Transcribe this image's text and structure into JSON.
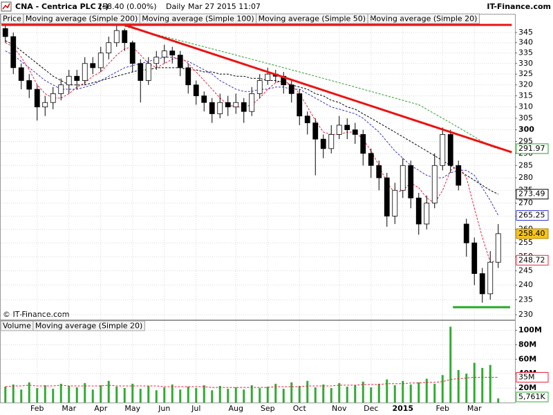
{
  "chart_data": {
    "type": "candlestick",
    "header": {
      "symbol": "CNA - Centrica PLC (-)",
      "quote": "258.40 (0.00%)",
      "period": "Daily",
      "datetime": "Mar 27 2015 11:07",
      "source": "IT-Finance.com"
    },
    "copyright": "© IT-Finance.com",
    "price_name": "Price",
    "log": true,
    "grid": true,
    "categories": [
      null,
      null,
      null,
      null,
      "Feb",
      null,
      null,
      null,
      "Mar",
      null,
      null,
      null,
      "Apr",
      null,
      null,
      null,
      "May",
      null,
      null,
      null,
      "Jun",
      null,
      null,
      null,
      "Jul",
      null,
      null,
      null,
      null,
      "Aug",
      null,
      null,
      null,
      "Sep",
      null,
      null,
      null,
      "Oct",
      null,
      null,
      null,
      null,
      "Nov",
      null,
      null,
      null,
      "Dec",
      null,
      null,
      null,
      "2015",
      null,
      null,
      null,
      null,
      "Feb",
      null,
      null,
      null,
      "Mar",
      null,
      null,
      null
    ],
    "open": [
      347,
      343,
      328,
      322,
      318,
      310,
      312,
      316,
      320,
      324,
      322,
      330,
      328,
      335,
      340,
      346,
      340,
      330,
      322,
      330,
      333,
      336,
      334,
      328,
      320,
      315,
      312,
      307,
      312,
      310,
      312,
      308,
      316,
      322,
      325,
      324,
      320,
      316,
      306,
      303,
      296,
      292,
      298,
      302,
      300,
      298,
      290,
      285,
      280,
      265,
      275,
      285,
      272,
      262,
      270,
      285,
      298,
      285,
      262,
      255,
      244,
      237,
      248
    ],
    "high": [
      349,
      345,
      330,
      325,
      320,
      315,
      319,
      323,
      327,
      327,
      333,
      333,
      338,
      343,
      349,
      347,
      341,
      332,
      333,
      336,
      339,
      338,
      336,
      330,
      322,
      317,
      314,
      316,
      315,
      316,
      314,
      319,
      325,
      328,
      327,
      326,
      322,
      318,
      308,
      305,
      298,
      302,
      306,
      305,
      303,
      300,
      292,
      287,
      282,
      278,
      288,
      287,
      274,
      273,
      290,
      301,
      300,
      287,
      264,
      257,
      246,
      252,
      262
    ],
    "low": [
      340,
      325,
      318,
      314,
      304,
      306,
      309,
      313,
      316,
      318,
      320,
      325,
      326,
      332,
      338,
      336,
      326,
      312,
      320,
      327,
      330,
      330,
      324,
      316,
      311,
      308,
      303,
      305,
      306,
      307,
      303,
      306,
      314,
      320,
      321,
      316,
      312,
      302,
      298,
      281,
      288,
      290,
      296,
      296,
      294,
      285,
      280,
      275,
      261,
      262,
      272,
      268,
      258,
      260,
      268,
      283,
      282,
      275,
      250,
      240,
      234,
      235,
      246
    ],
    "close": [
      343,
      328,
      322,
      318,
      310,
      312,
      316,
      320,
      324,
      322,
      330,
      328,
      335,
      340,
      346,
      340,
      330,
      322,
      330,
      333,
      336,
      334,
      328,
      320,
      315,
      312,
      307,
      312,
      310,
      312,
      308,
      316,
      322,
      325,
      324,
      320,
      316,
      306,
      303,
      296,
      292,
      298,
      302,
      300,
      298,
      290,
      285,
      280,
      265,
      275,
      285,
      272,
      262,
      270,
      285,
      298,
      285,
      277,
      255,
      244,
      237,
      248,
      258.4
    ],
    "up_color": "#ffffff",
    "down_color": "#000000",
    "last_price": {
      "value": 258.4,
      "label": "258.40"
    },
    "series": [
      {
        "name": "Moving average (Simple 200)",
        "color": "#2e9e2e",
        "values": [
          null,
          null,
          null,
          null,
          null,
          null,
          null,
          null,
          null,
          null,
          null,
          null,
          null,
          null,
          null,
          348,
          347,
          346,
          345,
          344,
          343,
          342,
          341,
          340,
          339,
          338,
          337,
          336,
          335,
          334,
          333,
          332,
          331,
          330,
          329,
          328,
          327,
          326,
          325,
          324,
          323,
          322,
          321,
          320,
          319,
          318,
          317,
          316,
          315,
          314,
          313,
          312,
          311,
          309,
          307,
          305,
          303,
          301,
          299,
          297,
          295,
          293,
          291.97
        ]
      },
      {
        "name": "Moving average (Simple 100)",
        "color": "#000000",
        "values": [
          341,
          339,
          336,
          333,
          330,
          327,
          324,
          322,
          320,
          320,
          320,
          321,
          322,
          323,
          324,
          325,
          326,
          327,
          327,
          328,
          328,
          328,
          328,
          327,
          327,
          326,
          326,
          325,
          325,
          324,
          324,
          323,
          323,
          322,
          322,
          321,
          320,
          319,
          318,
          316,
          315,
          313,
          312,
          310,
          309,
          307,
          305,
          303,
          301,
          299,
          297,
          295,
          293,
          291,
          289,
          287,
          285,
          283,
          281,
          279,
          277,
          275,
          273.49
        ]
      },
      {
        "name": "Moving average (Simple 50)",
        "color": "#3333cc",
        "values": [
          336,
          334,
          331,
          328,
          325,
          322,
          320,
          318,
          318,
          318,
          319,
          320,
          322,
          324,
          326,
          328,
          329,
          330,
          331,
          332,
          333,
          333,
          332,
          331,
          329,
          327,
          325,
          322,
          320,
          318,
          317,
          317,
          318,
          318,
          319,
          319,
          318,
          318,
          316,
          314,
          312,
          310,
          309,
          308,
          307,
          305,
          302,
          299,
          295,
          291,
          288,
          285,
          283,
          281,
          280,
          280,
          282,
          283,
          283,
          281,
          276,
          271,
          265.25
        ]
      },
      {
        "name": "Moving average (Simple 20)",
        "color": "#e8203a",
        "values": [
          340,
          338,
          333,
          327,
          320,
          316,
          314,
          314,
          316,
          319,
          321,
          324,
          326,
          330,
          334,
          337,
          338,
          334,
          330,
          328,
          330,
          332,
          333,
          330,
          326,
          322,
          318,
          314,
          311,
          310,
          310,
          311,
          314,
          318,
          321,
          322,
          320,
          316,
          310,
          304,
          299,
          298,
          298,
          299,
          299,
          296,
          291,
          285,
          278,
          274,
          275,
          278,
          276,
          272,
          270,
          275,
          283,
          285,
          280,
          268,
          257,
          248,
          248.72
        ]
      }
    ],
    "trendlines": [
      {
        "color": "#ee1111",
        "points": [
          [
            -0.5,
            348.8
          ],
          [
            63.7,
            348.8
          ]
        ]
      },
      {
        "color": "#ee1111",
        "points": [
          [
            15,
            348.8
          ],
          [
            63.7,
            290.5
          ]
        ]
      },
      {
        "color": "#22aa22",
        "points": [
          [
            56.3,
            232.5
          ],
          [
            63.5,
            232.5
          ]
        ]
      }
    ],
    "ylim": [
      228.4,
      354.4
    ],
    "yticks": [
      230,
      235,
      240,
      245,
      250,
      255,
      260,
      265,
      270,
      275,
      280,
      285,
      290,
      295,
      300,
      305,
      310,
      315,
      320,
      325,
      330,
      335,
      340,
      345
    ],
    "volume": {
      "name": "Volume",
      "color": "#33aa33",
      "values": [
        22000000,
        25000000,
        18000000,
        28000000,
        20000000,
        24000000,
        19000000,
        26000000,
        23000000,
        21000000,
        27000000,
        18000000,
        24000000,
        30000000,
        22000000,
        20000000,
        26000000,
        19000000,
        23000000,
        17000000,
        21000000,
        25000000,
        18000000,
        22000000,
        20000000,
        24000000,
        17000000,
        23000000,
        19000000,
        21000000,
        18000000,
        24000000,
        20000000,
        22000000,
        26000000,
        19000000,
        28000000,
        23000000,
        30000000,
        21000000,
        25000000,
        20000000,
        27000000,
        22000000,
        24000000,
        29000000,
        21000000,
        26000000,
        32000000,
        24000000,
        30000000,
        25000000,
        28000000,
        33000000,
        26000000,
        38000000,
        105000000,
        45000000,
        40000000,
        55000000,
        48000000,
        52000000,
        5761000
      ],
      "last_label": "5,761K",
      "ma": {
        "name": "Moving average (Simple 20)",
        "color": "#e8203a",
        "values": [
          22000000,
          23000000,
          23000000,
          24000000,
          23000000,
          23000000,
          23000000,
          24000000,
          23000000,
          23000000,
          23000000,
          23000000,
          23000000,
          24000000,
          23000000,
          23000000,
          23000000,
          23000000,
          23000000,
          23000000,
          22000000,
          22000000,
          22000000,
          22000000,
          22000000,
          22000000,
          21000000,
          21000000,
          21000000,
          21000000,
          21000000,
          21000000,
          21000000,
          21000000,
          22000000,
          22000000,
          22000000,
          22000000,
          23000000,
          23000000,
          23000000,
          23000000,
          24000000,
          24000000,
          24000000,
          25000000,
          25000000,
          25000000,
          26000000,
          26000000,
          26000000,
          27000000,
          27000000,
          28000000,
          28000000,
          29000000,
          32000000,
          33000000,
          34000000,
          35000000,
          35000000,
          35000000,
          35000000
        ],
        "last_label": "35M"
      },
      "ylim": [
        0,
        113000000
      ],
      "yticks": [
        {
          "value": 20000000,
          "label": "20M"
        },
        {
          "value": 40000000,
          "label": "40M"
        },
        {
          "value": 60000000,
          "label": "60M"
        },
        {
          "value": 80000000,
          "label": "80M"
        },
        {
          "value": 100000000,
          "label": "100M"
        }
      ]
    }
  }
}
